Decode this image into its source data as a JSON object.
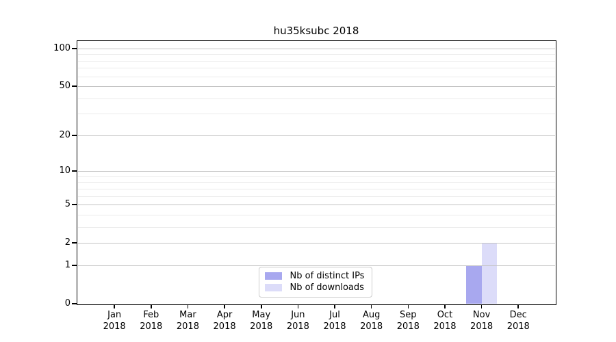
{
  "chart_data": {
    "type": "bar",
    "title": "hu35ksubc 2018",
    "categories": [
      "Jan 2018",
      "Feb 2018",
      "Mar 2018",
      "Apr 2018",
      "May 2018",
      "Jun 2018",
      "Jul 2018",
      "Aug 2018",
      "Sep 2018",
      "Oct 2018",
      "Nov 2018",
      "Dec 2018"
    ],
    "series": [
      {
        "name": "Nb of distinct IPs",
        "color": "#a8a8ef",
        "values": [
          0,
          0,
          0,
          0,
          0,
          0,
          0,
          0,
          0,
          0,
          1,
          0
        ]
      },
      {
        "name": "Nb of downloads",
        "color": "#dcdcf9",
        "values": [
          0,
          0,
          0,
          0,
          0,
          0,
          0,
          0,
          0,
          0,
          2,
          0
        ]
      }
    ],
    "xlabel": "",
    "ylabel": "",
    "yscale": "log1p",
    "ylim": [
      0,
      113
    ],
    "yticks": [
      0,
      1,
      2,
      5,
      10,
      20,
      50,
      100
    ],
    "minor_yticks": [
      3,
      4,
      6,
      7,
      8,
      9,
      30,
      40,
      60,
      70,
      80,
      90
    ],
    "grid": true,
    "legend_position": "lower center inside plot"
  },
  "legend": {
    "items": [
      {
        "label": "Nb of distinct IPs"
      },
      {
        "label": "Nb of downloads"
      }
    ]
  },
  "colors": {
    "background": "#ffffff",
    "axis": "#000000",
    "major_grid": "#c3c3c3",
    "minor_grid": "#ebebeb",
    "bar_distinct_ips": "#a8a8ef",
    "bar_downloads": "#dcdcf9",
    "legend_border": "#cccccc"
  }
}
